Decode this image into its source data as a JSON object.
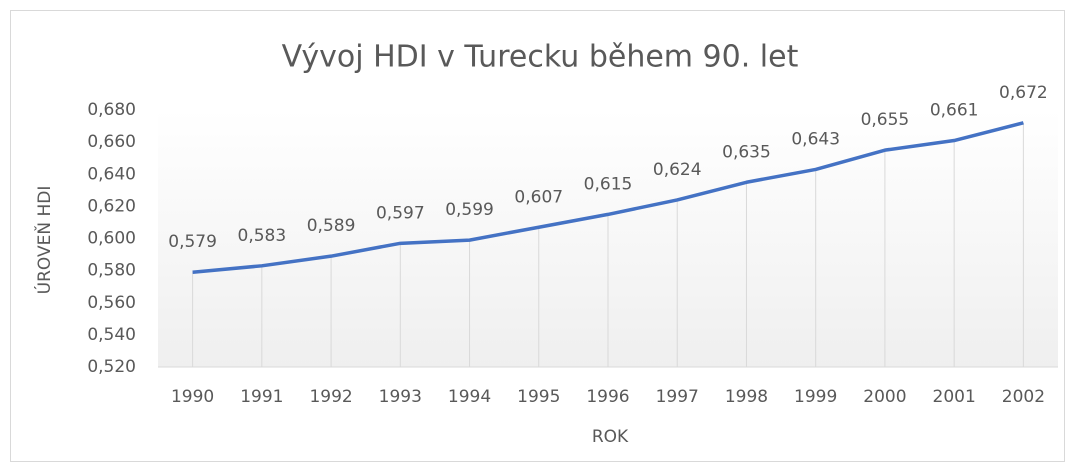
{
  "chart_data": {
    "type": "line",
    "title": "Vývoj HDI v Turecku během 90. let",
    "x_label": "ROK",
    "y_label": "ÚROVEŇ HDI",
    "categories": [
      "1990",
      "1991",
      "1992",
      "1993",
      "1994",
      "1995",
      "1996",
      "1997",
      "1998",
      "1999",
      "2000",
      "2001",
      "2002"
    ],
    "series": [
      {
        "name": "HDI",
        "color": "#4472c4",
        "values": [
          0.579,
          0.583,
          0.589,
          0.597,
          0.599,
          0.607,
          0.615,
          0.624,
          0.635,
          0.643,
          0.655,
          0.661,
          0.672
        ],
        "value_labels": [
          "0,579",
          "0,583",
          "0,589",
          "0,597",
          "0,599",
          "0,607",
          "0,615",
          "0,624",
          "0,635",
          "0,643",
          "0,655",
          "0,661",
          "0,672"
        ]
      }
    ],
    "ylim": [
      0.52,
      0.68
    ],
    "yticks": [
      {
        "value": 0.52,
        "label": "0,520"
      },
      {
        "value": 0.54,
        "label": "0,540"
      },
      {
        "value": 0.56,
        "label": "0,560"
      },
      {
        "value": 0.58,
        "label": "0,580"
      },
      {
        "value": 0.6,
        "label": "0,600"
      },
      {
        "value": 0.62,
        "label": "0,620"
      },
      {
        "value": 0.64,
        "label": "0,640"
      },
      {
        "value": 0.66,
        "label": "0,660"
      },
      {
        "value": 0.68,
        "label": "0,680"
      }
    ],
    "drop_lines": true
  }
}
